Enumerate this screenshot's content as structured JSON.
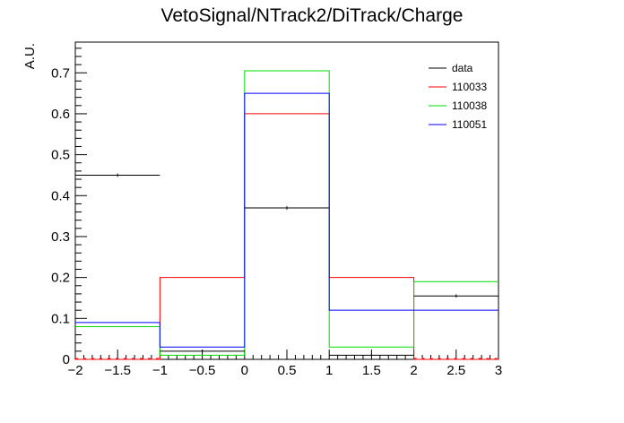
{
  "chart_data": {
    "type": "histogram",
    "title": "VetoSignal/NTrack2/DiTrack/Charge",
    "xlabel": "",
    "ylabel": "A.U.",
    "xlim": [
      -2,
      3
    ],
    "ylim": [
      0,
      0.775
    ],
    "bin_edges": [
      -2,
      -1,
      0,
      1,
      2,
      3
    ],
    "x_ticks": [
      -2,
      -1.5,
      -1,
      -0.5,
      0,
      0.5,
      1,
      1.5,
      2,
      2.5,
      3
    ],
    "x_tick_labels": [
      "−2",
      "−1.5",
      "−1",
      "−0.5",
      "0",
      "0.5",
      "1",
      "1.5",
      "2",
      "2.5",
      "3"
    ],
    "y_ticks": [
      0,
      0.1,
      0.2,
      0.3,
      0.4,
      0.5,
      0.6,
      0.7
    ],
    "y_tick_labels": [
      "0",
      "0.1",
      "0.2",
      "0.3",
      "0.4",
      "0.5",
      "0.6",
      "0.7"
    ],
    "legend_position": "top-right",
    "series": [
      {
        "name": "data",
        "color": "#000000",
        "style": "points",
        "values": [
          0.45,
          0.02,
          0.37,
          0.01,
          0.155
        ],
        "errors": [
          0.004,
          0.003,
          0.004,
          0.003,
          0.004
        ]
      },
      {
        "name": "110033",
        "color": "#ff0000",
        "style": "step",
        "values": [
          0.0,
          0.2,
          0.6,
          0.2,
          0.0
        ]
      },
      {
        "name": "110038",
        "color": "#00dd00",
        "style": "step",
        "values": [
          0.08,
          0.01,
          0.705,
          0.03,
          0.19
        ]
      },
      {
        "name": "110051",
        "color": "#0000ff",
        "style": "step",
        "values": [
          0.09,
          0.03,
          0.65,
          0.12,
          0.12
        ]
      }
    ]
  }
}
